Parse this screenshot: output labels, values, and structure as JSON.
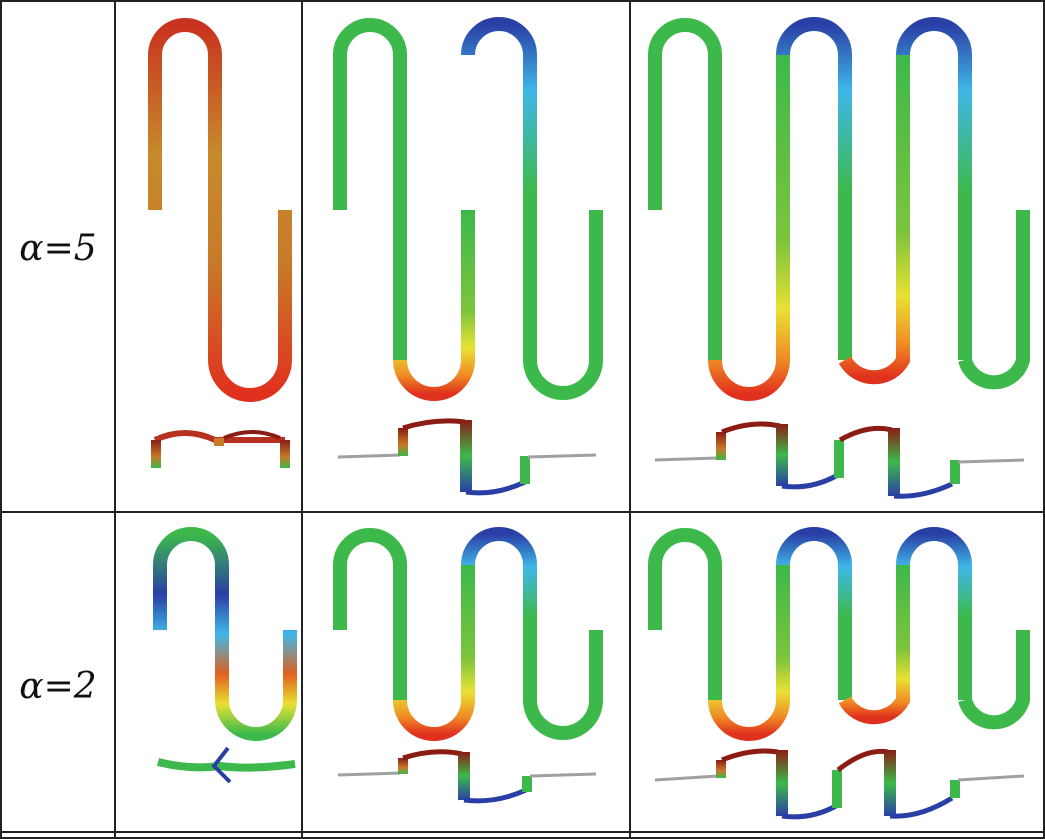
{
  "rows": [
    {
      "label": "α=5",
      "cells": [
        {
          "meanders": 1
        },
        {
          "meanders": 2
        },
        {
          "meanders": 3
        }
      ]
    },
    {
      "label": "α=2",
      "cells": [
        {
          "meanders": 1
        },
        {
          "meanders": 2
        },
        {
          "meanders": 3
        }
      ]
    }
  ],
  "colors": {
    "border": "#222222",
    "green": "#3cb94a",
    "yellow": "#e8e132",
    "orange": "#f08a24",
    "red": "#e0301e",
    "cyan": "#3fb8e8",
    "blue": "#2a3fa6",
    "dark_red": "#8a1c14",
    "brown": "#b87a2a"
  }
}
